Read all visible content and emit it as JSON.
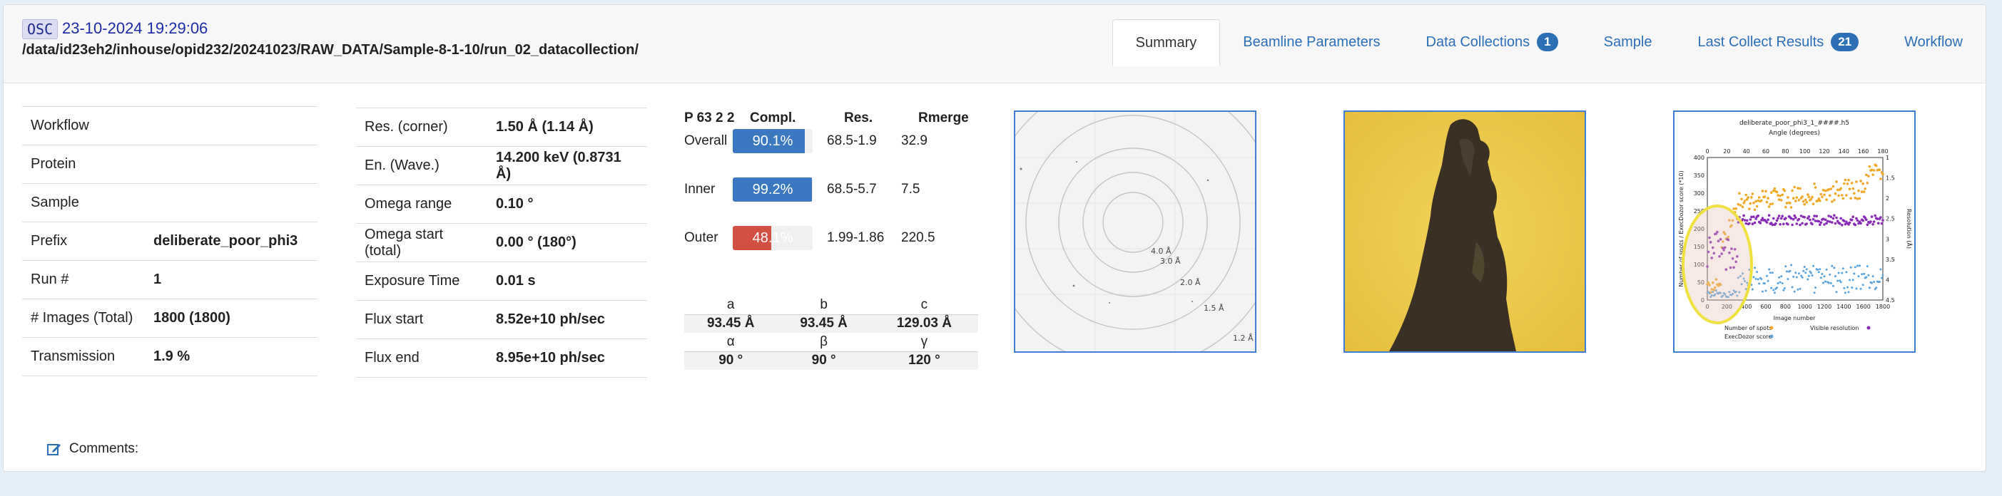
{
  "header": {
    "badge": "OSC",
    "datetime": "23-10-2024 19:29:06",
    "path": "/data/id23eh2/inhouse/opid232/20241023/RAW_DATA/Sample-8-1-10/run_02_datacollection/"
  },
  "tabs": [
    {
      "label": "Summary"
    },
    {
      "label": "Beamline Parameters"
    },
    {
      "label": "Data Collections",
      "count": "1"
    },
    {
      "label": "Sample"
    },
    {
      "label": "Last Collect Results",
      "count": "21"
    },
    {
      "label": "Workflow"
    }
  ],
  "info": [
    {
      "label": "Workflow",
      "value": ""
    },
    {
      "label": "Protein",
      "value": ""
    },
    {
      "label": "Sample",
      "value": ""
    },
    {
      "label": "Prefix",
      "value": "deliberate_poor_phi3"
    },
    {
      "label": "Run #",
      "value": "1"
    },
    {
      "label": "# Images (Total)",
      "value": "1800 (1800)"
    },
    {
      "label": "Transmission",
      "value": "1.9 %"
    }
  ],
  "params": [
    {
      "label": "Res. (corner)",
      "value": "1.50 Å (1.14 Å)"
    },
    {
      "label": "En. (Wave.)",
      "value": "14.200 keV (0.8731 Å)"
    },
    {
      "label": "Omega range",
      "value": "0.10 °"
    },
    {
      "label": "Omega start (total)",
      "value": "0.00 ° (180°)"
    },
    {
      "label": "Exposure Time",
      "value": "0.01 s"
    },
    {
      "label": "Flux start",
      "value": "8.52e+10 ph/sec"
    },
    {
      "label": "Flux end",
      "value": "8.95e+10 ph/sec"
    }
  ],
  "stats": {
    "space_group": "P 63 2 2",
    "headers": {
      "compl": "Compl.",
      "res": "Res.",
      "rmerge": "Rmerge"
    },
    "rows": [
      {
        "shell": "Overall",
        "compl_label": "90.1%",
        "compl": 90.1,
        "res": "68.5-1.9",
        "rmerge": "32.9",
        "color": "#3c78c0"
      },
      {
        "shell": "Inner",
        "compl_label": "99.2%",
        "compl": 99.2,
        "res": "68.5-5.7",
        "rmerge": "7.5",
        "color": "#3c78c0"
      },
      {
        "shell": "Outer",
        "compl_label": "48.1%",
        "compl": 48.1,
        "res": "1.99-1.86",
        "rmerge": "220.5",
        "color": "#d24f44"
      }
    ]
  },
  "cell": {
    "lengths_labels": [
      "a",
      "b",
      "c"
    ],
    "lengths": [
      "93.45 Å",
      "93.45 Å",
      "129.03 Å"
    ],
    "angles_labels": [
      "α",
      "β",
      "γ"
    ],
    "angles": [
      "90 °",
      "90 °",
      "120 °"
    ]
  },
  "diffraction": {
    "ring_labels": [
      "4.0 Å",
      "3.0 Å",
      "2.0 Å",
      "1.5 Å",
      "1.2 Å"
    ]
  },
  "plot": {
    "title": "deliberate_poor_phi3_1_####.h5",
    "top_axis_label": "Angle (degrees)",
    "top_ticks": [
      "0",
      "20",
      "40",
      "60",
      "80",
      "100",
      "120",
      "140",
      "160",
      "180"
    ],
    "bottom_ticks": [
      "0",
      "200",
      "400",
      "600",
      "800",
      "1000",
      "1200",
      "1400",
      "1600",
      "1800"
    ],
    "left_ticks": [
      "0",
      "50",
      "100",
      "150",
      "200",
      "250",
      "300",
      "350",
      "400"
    ],
    "right_ticks": [
      "1",
      "1.5",
      "2",
      "2.5",
      "3",
      "3.5",
      "4",
      "4.5"
    ],
    "xlabel": "Image number",
    "ylabel_left": "Number of spots / ExecDozor score (*10)",
    "ylabel_right": "Resolution (Å)",
    "legend": [
      "Number of spots",
      "Visible resolution",
      "ExecDozor score"
    ],
    "colors": {
      "spots": "#f0a828",
      "resolution": "#8a2bb8",
      "score": "#5aa3dc"
    }
  },
  "comments": {
    "label": "Comments:"
  }
}
